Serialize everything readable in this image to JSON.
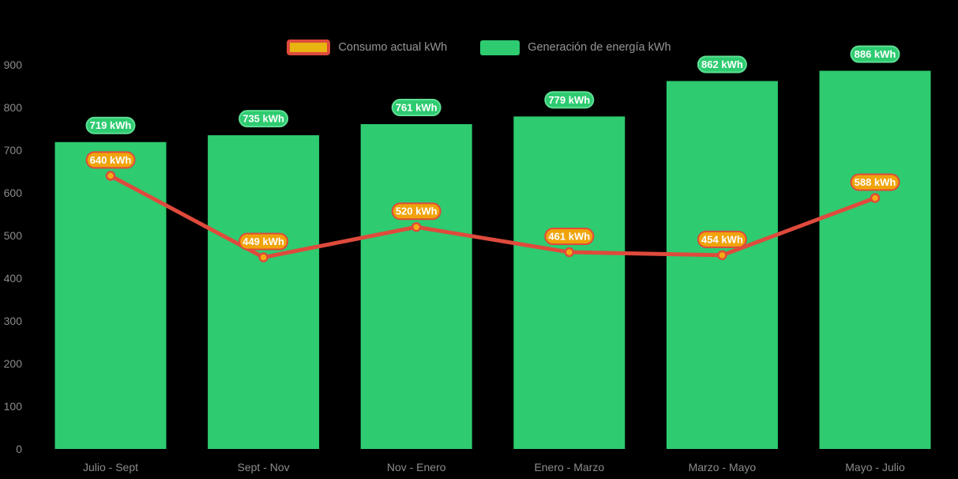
{
  "page": {
    "background": "#000000"
  },
  "legend": {
    "items": [
      {
        "label": "Consumo actual kWh"
      },
      {
        "label": "Generación de energía kWh"
      }
    ]
  },
  "colors": {
    "bar_green": "#2ecb70",
    "bar_badge_fill": "#2ecb70",
    "bar_badge_border": "#5fe095",
    "line_red": "#df4a3c",
    "point_orange": "#f5ac12",
    "line_badge_fill": "#f0a30a",
    "line_badge_border": "#df4a3c",
    "legend_marker_fill": "#e7b410",
    "axis_label_gray": "#8c8c8c",
    "legend_text_gray": "#969696",
    "badge_text_white": "#ffffff"
  },
  "chart_data": {
    "type": "bar+line",
    "categories": [
      "Julio - Sept",
      "Sept - Nov",
      "Nov - Enero",
      "Enero - Marzo",
      "Marzo - Mayo",
      "Mayo - Julio"
    ],
    "series": [
      {
        "name": "Generación de energía kWh",
        "type": "bar",
        "values": [
          719,
          735,
          761,
          779,
          862,
          886
        ],
        "data_labels": [
          "719 kWh",
          "735 kWh",
          "761 kWh",
          "779 kWh",
          "862 kWh",
          "886 kWh"
        ],
        "color": "#2ecb70"
      },
      {
        "name": "Consumo actual kWh",
        "type": "line",
        "values": [
          640,
          449,
          520,
          461,
          454,
          588
        ],
        "data_labels": [
          "640 kWh",
          "449 kWh",
          "520 kWh",
          "461 kWh",
          "454 kWh",
          "588 kWh"
        ],
        "color": "#df4a3c"
      }
    ],
    "unit": "kWh",
    "ylim": [
      0,
      900
    ],
    "y_ticks": [
      0,
      100,
      200,
      300,
      400,
      500,
      600,
      700,
      800,
      900
    ],
    "xlabel": "",
    "ylabel": "",
    "grid": false,
    "legend_position": "top",
    "background": "transparent-black"
  }
}
